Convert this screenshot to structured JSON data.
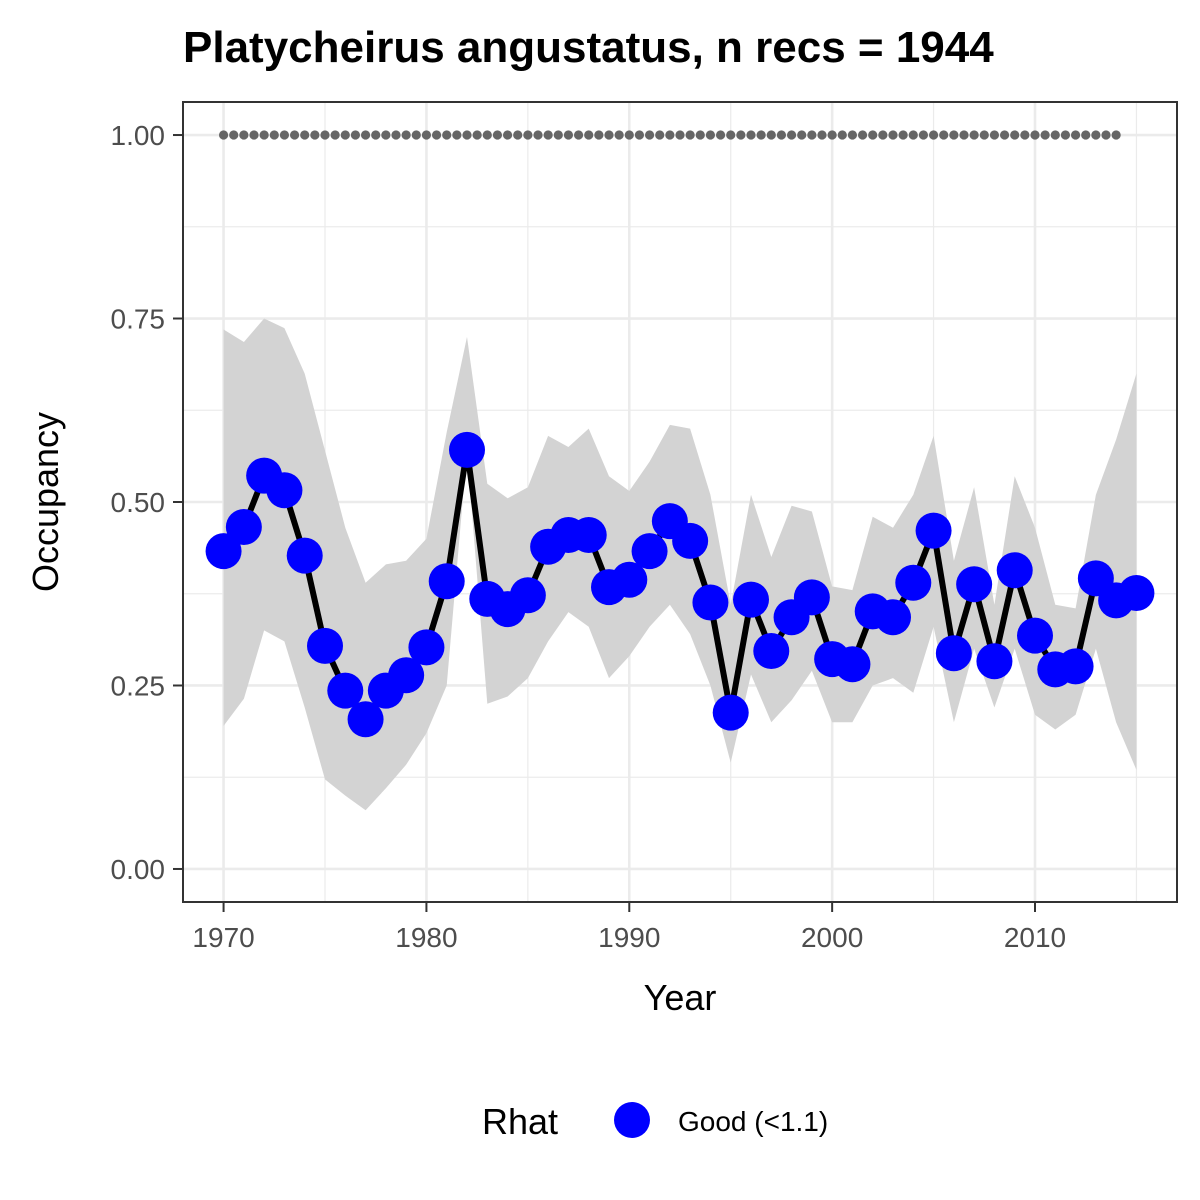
{
  "chart_data": {
    "type": "line",
    "title": "Platycheirus angustatus, n recs = 1944",
    "xlabel": "Year",
    "ylabel": "Occupancy",
    "xlim": [
      1968,
      2017
    ],
    "ylim": [
      -0.045,
      1.045
    ],
    "x_ticks": [
      1970,
      1980,
      1990,
      2000,
      2010
    ],
    "x_tick_labels": [
      "1970",
      "1980",
      "1990",
      "2000",
      "2010"
    ],
    "y_ticks": [
      0,
      0.25,
      0.5,
      0.75,
      1.0
    ],
    "y_tick_labels": [
      "0.00",
      "0.25",
      "0.50",
      "0.75",
      "1.00"
    ],
    "grid": true,
    "x": [
      1970,
      1971,
      1972,
      1973,
      1974,
      1975,
      1976,
      1977,
      1978,
      1979,
      1980,
      1981,
      1982,
      1983,
      1984,
      1985,
      1986,
      1987,
      1988,
      1989,
      1990,
      1991,
      1992,
      1993,
      1994,
      1995,
      1996,
      1997,
      1998,
      1999,
      2000,
      2001,
      2002,
      2003,
      2004,
      2005,
      2006,
      2007,
      2008,
      2009,
      2010,
      2011,
      2012,
      2013,
      2014,
      2015
    ],
    "series": [
      {
        "name": "Good (<1.1)",
        "values": [
          0.433,
          0.466,
          0.536,
          0.516,
          0.427,
          0.304,
          0.243,
          0.204,
          0.243,
          0.264,
          0.302,
          0.392,
          0.571,
          0.368,
          0.354,
          0.373,
          0.439,
          0.455,
          0.455,
          0.384,
          0.394,
          0.433,
          0.474,
          0.447,
          0.363,
          0.213,
          0.367,
          0.297,
          0.343,
          0.37,
          0.286,
          0.279,
          0.351,
          0.343,
          0.39,
          0.461,
          0.294,
          0.388,
          0.283,
          0.407,
          0.318,
          0.272,
          0.276,
          0.396,
          0.366,
          0.376
        ]
      }
    ],
    "ci_lower": [
      0.195,
      0.232,
      0.325,
      0.31,
      0.22,
      0.122,
      0.1,
      0.08,
      0.11,
      0.142,
      0.185,
      0.25,
      0.57,
      0.225,
      0.235,
      0.26,
      0.31,
      0.35,
      0.33,
      0.26,
      0.29,
      0.33,
      0.36,
      0.32,
      0.25,
      0.145,
      0.265,
      0.2,
      0.23,
      0.27,
      0.2,
      0.2,
      0.25,
      0.26,
      0.24,
      0.33,
      0.2,
      0.3,
      0.22,
      0.3,
      0.21,
      0.19,
      0.21,
      0.3,
      0.2,
      0.135
    ],
    "ci_upper": [
      0.735,
      0.718,
      0.75,
      0.737,
      0.675,
      0.57,
      0.465,
      0.39,
      0.415,
      0.42,
      0.45,
      0.595,
      0.725,
      0.525,
      0.505,
      0.52,
      0.59,
      0.575,
      0.6,
      0.535,
      0.515,
      0.555,
      0.605,
      0.6,
      0.51,
      0.36,
      0.51,
      0.425,
      0.495,
      0.487,
      0.385,
      0.38,
      0.48,
      0.465,
      0.51,
      0.59,
      0.42,
      0.52,
      0.36,
      0.535,
      0.465,
      0.36,
      0.355,
      0.51,
      0.585,
      0.675
    ],
    "reference_line": {
      "y": 1.0,
      "x_from": 1970,
      "x_to": 2014,
      "style": "dotted",
      "color": "#666666"
    },
    "legend": {
      "title": "Rhat",
      "position": "bottom",
      "entries": [
        "Good (<1.1)"
      ]
    },
    "colors": {
      "points": "#0000ff",
      "line": "#000000",
      "ribbon": "#d3d3d3",
      "grid": "#ebebeb",
      "border": "#333333"
    }
  }
}
